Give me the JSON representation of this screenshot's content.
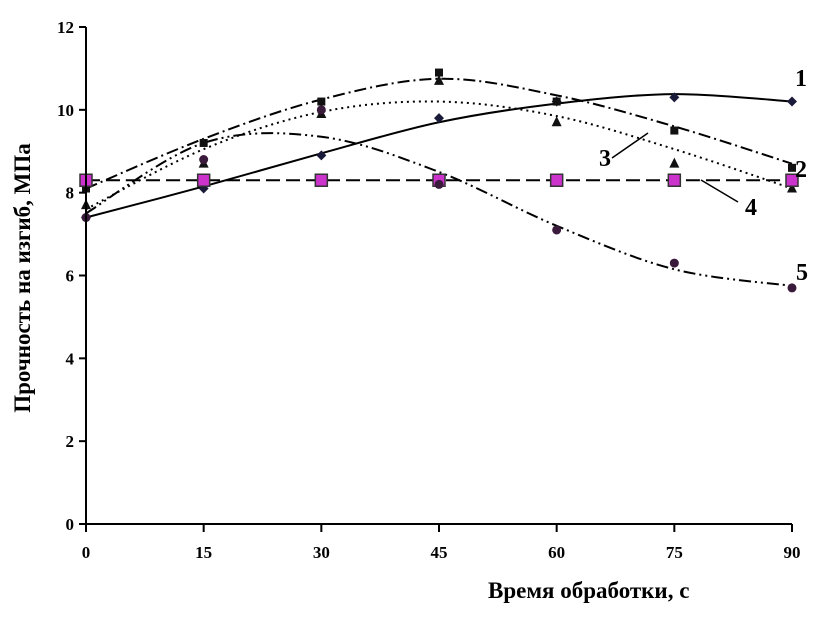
{
  "chart_data": {
    "type": "line",
    "xlabel": "Время обработки, с",
    "ylabel": "Прочность на изгиб, МПа",
    "xlim": [
      0,
      90
    ],
    "ylim": [
      0,
      12
    ],
    "xticks": [
      "0",
      "15",
      "30",
      "45",
      "60",
      "75",
      "90"
    ],
    "yticks": [
      "0",
      "2",
      "4",
      "6",
      "8",
      "10",
      "12"
    ],
    "grid": false,
    "legend": "none",
    "x": [
      0,
      15,
      30,
      45,
      60,
      75,
      90
    ],
    "series": [
      {
        "label": "1",
        "marker": "diamond",
        "line": "solid",
        "values": [
          7.4,
          8.1,
          8.9,
          9.8,
          10.2,
          10.3,
          10.2
        ],
        "trend": [
          7.4,
          8.15,
          8.95,
          9.7,
          10.15,
          10.38,
          10.2
        ]
      },
      {
        "label": "2",
        "marker": "square",
        "line": "dash-dot",
        "values": [
          8.1,
          9.2,
          10.2,
          10.9,
          10.2,
          9.5,
          8.6
        ],
        "trend": [
          8.1,
          9.3,
          10.25,
          10.75,
          10.35,
          9.6,
          8.7
        ]
      },
      {
        "label": "3",
        "marker": "triangle",
        "line": "dotted",
        "values": [
          7.7,
          8.7,
          9.9,
          10.7,
          9.7,
          8.7,
          8.1
        ],
        "trend": [
          7.6,
          9.05,
          9.95,
          10.2,
          9.85,
          9.05,
          8.1
        ]
      },
      {
        "label": "4",
        "marker": "square-magenta",
        "line": "dashed",
        "values": [
          8.3,
          8.3,
          8.3,
          8.3,
          8.3,
          8.3,
          8.3
        ],
        "trend": [
          8.3,
          8.3,
          8.3,
          8.3,
          8.3,
          8.3,
          8.3
        ]
      },
      {
        "label": "5",
        "marker": "circle",
        "line": "dash-dot-dot",
        "values": [
          7.4,
          8.8,
          10.0,
          8.2,
          7.1,
          6.3,
          5.7
        ],
        "trend": [
          7.5,
          9.2,
          9.35,
          8.5,
          7.2,
          6.15,
          5.75
        ]
      }
    ],
    "colors": {
      "axis": "#000000",
      "line": "#000000",
      "marker": "#1a1a3a",
      "magenta_marker": "#cc33cc"
    }
  }
}
